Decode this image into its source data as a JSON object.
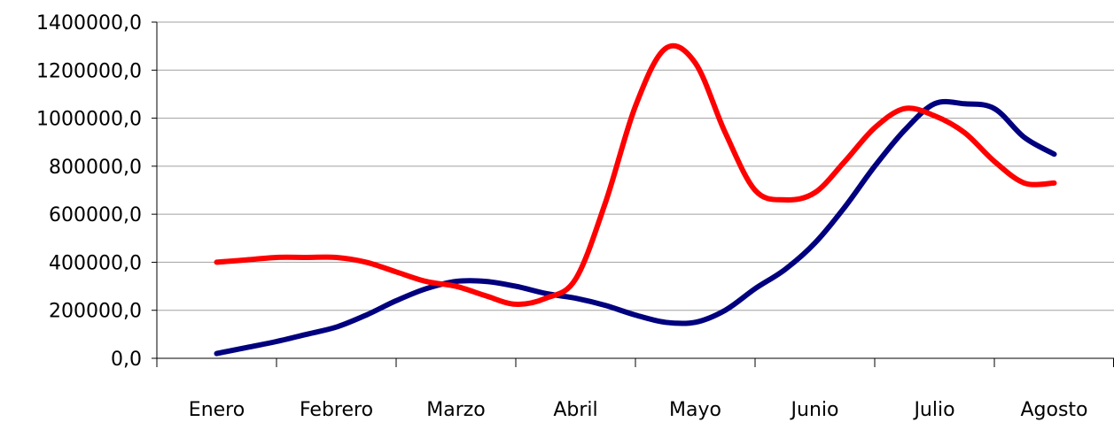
{
  "chart_data": {
    "type": "line",
    "categories": [
      "Enero",
      "Febrero",
      "Marzo",
      "Abril",
      "Mayo",
      "Junio",
      "Julio",
      "Agosto"
    ],
    "ylim": [
      0,
      1400000
    ],
    "y_ticks": [
      0,
      200000,
      400000,
      600000,
      800000,
      1000000,
      1200000,
      1400000
    ],
    "y_tick_labels": [
      "0,0",
      "200000,0",
      "400000,0",
      "600000,0",
      "800000,0",
      "1000000,0",
      "1200000,0",
      "1400000,0"
    ],
    "grid": true,
    "legend": "none",
    "series": [
      {
        "color": "#00007f",
        "x": [
          0,
          0.25,
          0.5,
          0.75,
          1,
          1.25,
          1.5,
          1.75,
          2,
          2.25,
          2.5,
          2.75,
          3,
          3.25,
          3.5,
          3.75,
          4,
          4.25,
          4.5,
          4.75,
          5,
          5.25,
          5.5,
          5.75,
          6,
          6.25,
          6.5,
          6.75,
          7
        ],
        "values": [
          20000,
          45000,
          70000,
          100000,
          130000,
          180000,
          240000,
          290000,
          320000,
          320000,
          300000,
          270000,
          250000,
          220000,
          180000,
          150000,
          150000,
          200000,
          290000,
          370000,
          480000,
          630000,
          800000,
          950000,
          1060000,
          1060000,
          1040000,
          920000,
          850000
        ]
      },
      {
        "color": "#ff0000",
        "x": [
          0,
          0.25,
          0.5,
          0.75,
          1,
          1.25,
          1.5,
          1.75,
          2,
          2.25,
          2.5,
          2.75,
          3,
          3.25,
          3.5,
          3.75,
          4,
          4.25,
          4.5,
          4.75,
          5,
          5.25,
          5.5,
          5.75,
          6,
          6.25,
          6.5,
          6.75,
          7
        ],
        "values": [
          400000,
          410000,
          420000,
          420000,
          420000,
          400000,
          360000,
          320000,
          300000,
          260000,
          225000,
          250000,
          330000,
          650000,
          1050000,
          1290000,
          1230000,
          940000,
          700000,
          660000,
          690000,
          820000,
          960000,
          1040000,
          1010000,
          940000,
          820000,
          730000,
          730000
        ]
      }
    ]
  }
}
